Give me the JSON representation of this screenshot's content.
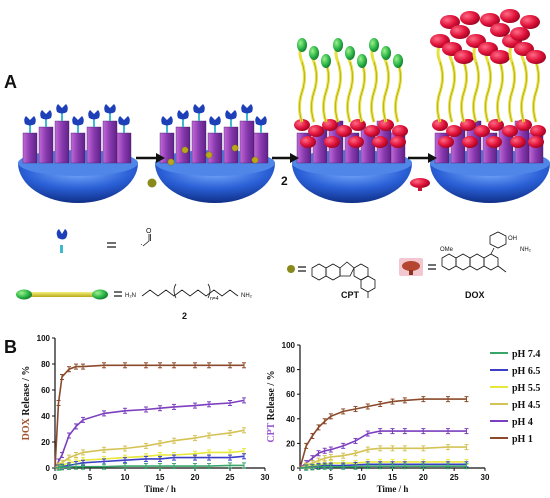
{
  "panel_a": {
    "label": "A",
    "step2_label": "2",
    "legend": {
      "aldehyde_formula": "O",
      "linker_compound_number": "2",
      "linker_subscript": "n=4",
      "linker_h2n_left": "H₂N",
      "linker_nh2_right": "NH₂",
      "cpt_label": "CPT",
      "dox_label": "DOX",
      "dox_ome": "OMe",
      "dox_oh": "OH",
      "dox_nh2": "NH₂"
    }
  },
  "panel_b": {
    "label": "B",
    "legend": [
      "pH 7.4",
      "pH 6.5",
      "pH 5.5",
      "pH 4.5",
      "pH 4",
      "pH 1"
    ]
  },
  "chart_data": [
    {
      "type": "line",
      "ylabel_drug": "DOX",
      "ylabel_rest": " Release / %",
      "xlabel": "Time / h",
      "xlim": [
        0,
        30
      ],
      "ylim": [
        0,
        100
      ],
      "xticks": [
        0,
        5,
        10,
        15,
        20,
        25,
        30
      ],
      "yticks": [
        0,
        20,
        40,
        60,
        80,
        100
      ],
      "x": [
        0,
        0.5,
        1,
        2,
        3,
        4,
        7,
        10,
        13,
        15,
        17,
        20,
        22,
        25,
        27
      ],
      "series": [
        {
          "name": "pH 1",
          "color": "#8b4a2b",
          "values": [
            0,
            50,
            70,
            76,
            78,
            78,
            79,
            79,
            79,
            79,
            79,
            79,
            79,
            79,
            79
          ]
        },
        {
          "name": "pH 4",
          "color": "#7b3fbf",
          "values": [
            0,
            5,
            10,
            25,
            32,
            37,
            42,
            44,
            45,
            46,
            47,
            48,
            49,
            50,
            52
          ]
        },
        {
          "name": "pH 4.5",
          "color": "#d4c255",
          "values": [
            0,
            2,
            4,
            8,
            10,
            12,
            14,
            15,
            17,
            19,
            21,
            23,
            25,
            27,
            29
          ]
        },
        {
          "name": "pH 5.5",
          "color": "#e8e83a",
          "values": [
            0,
            1,
            2,
            4,
            5,
            6,
            7,
            8,
            9,
            10,
            10,
            11,
            12,
            12,
            13
          ]
        },
        {
          "name": "pH 6.5",
          "color": "#3c3fc6",
          "values": [
            0,
            0.5,
            1,
            2,
            3,
            4,
            5,
            6,
            7,
            7,
            8,
            8,
            8,
            8,
            9
          ]
        },
        {
          "name": "pH 7.4",
          "color": "#3aa56a",
          "values": [
            0,
            0.2,
            0.5,
            0.8,
            1,
            1,
            1,
            1.5,
            1.5,
            1.5,
            1.5,
            1.5,
            1.5,
            2,
            2
          ]
        }
      ]
    },
    {
      "type": "line",
      "ylabel_drug": "CPT",
      "ylabel_rest": " Release / %",
      "xlabel": "Time / h",
      "xlim": [
        0,
        30
      ],
      "ylim": [
        0,
        100
      ],
      "xticks": [
        0,
        5,
        10,
        15,
        20,
        25,
        30
      ],
      "yticks": [
        0,
        20,
        40,
        60,
        80,
        100
      ],
      "x": [
        0,
        1,
        2,
        3,
        4,
        5,
        7,
        9,
        11,
        13,
        15,
        17,
        20,
        24,
        27
      ],
      "series": [
        {
          "name": "pH 1",
          "color": "#8b4a2b",
          "values": [
            0,
            18,
            26,
            33,
            38,
            42,
            46,
            48,
            50,
            52,
            54,
            55,
            56,
            56,
            56
          ]
        },
        {
          "name": "pH 4",
          "color": "#7b3fbf",
          "values": [
            0,
            4,
            8,
            12,
            14,
            15,
            18,
            22,
            28,
            30,
            30,
            30,
            30,
            30,
            30
          ]
        },
        {
          "name": "pH 4.5",
          "color": "#d4c255",
          "values": [
            0,
            2,
            4,
            6,
            8,
            9,
            10,
            12,
            15,
            16,
            16,
            16,
            16,
            17,
            17
          ]
        },
        {
          "name": "pH 5.5",
          "color": "#e8e83a",
          "values": [
            0,
            1,
            2,
            3,
            3,
            4,
            4,
            4,
            5,
            5,
            5,
            5,
            5,
            5,
            5
          ]
        },
        {
          "name": "pH 6.5",
          "color": "#3c3fc6",
          "values": [
            0,
            0.5,
            1,
            1.5,
            2,
            2,
            2,
            2.5,
            3,
            3,
            3,
            3,
            3,
            3,
            3
          ]
        },
        {
          "name": "pH 7.4",
          "color": "#3aa56a",
          "values": [
            0,
            0.2,
            0.5,
            0.8,
            1,
            1,
            1,
            1,
            1.5,
            1.5,
            1.5,
            1.5,
            1.5,
            1.5,
            1.5
          ]
        }
      ]
    }
  ]
}
